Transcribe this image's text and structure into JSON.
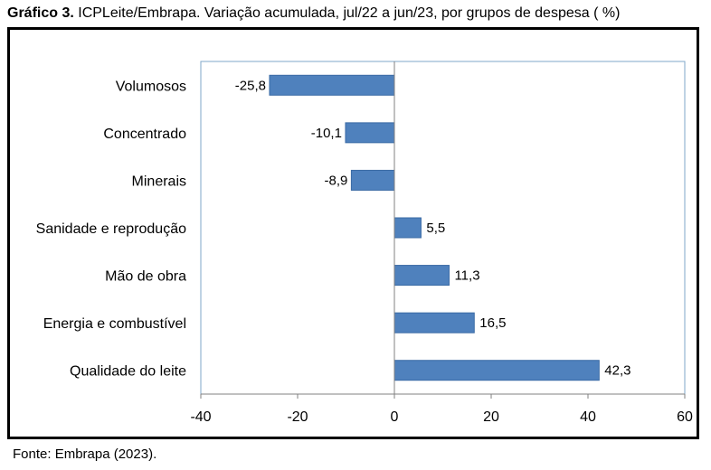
{
  "header": {
    "title_bold": "Gráfico 3.",
    "title_rest": " ICPLeite/Embrapa. Variação acumulada, jul/22 a jun/23, por grupos de despesa ( %)"
  },
  "footer": {
    "source": "Fonte: Embrapa (2023)."
  },
  "colors": {
    "bar": "#4F81BD",
    "bar_stroke": "#3A6AA5",
    "axis": "#808080",
    "plot_border": "#7FA7C9"
  },
  "chart_data": {
    "type": "bar",
    "orientation": "horizontal",
    "categories": [
      "Volumosos",
      "Concentrado",
      "Minerais",
      "Sanidade e reprodução",
      "Mão de obra",
      "Energia e combustível",
      "Qualidade do leite"
    ],
    "values": [
      -25.8,
      -10.1,
      -8.9,
      5.5,
      11.3,
      16.5,
      42.3
    ],
    "value_labels": [
      "-25,8",
      "-10,1",
      "-8,9",
      "5,5",
      "11,3",
      "16,5",
      "42,3"
    ],
    "xlim": [
      -40,
      60
    ],
    "xticks": [
      -40,
      -20,
      0,
      20,
      40,
      60
    ],
    "xtick_labels": [
      "-40",
      "-20",
      "0",
      "20",
      "40",
      "60"
    ],
    "grid": false,
    "legend": "none"
  }
}
